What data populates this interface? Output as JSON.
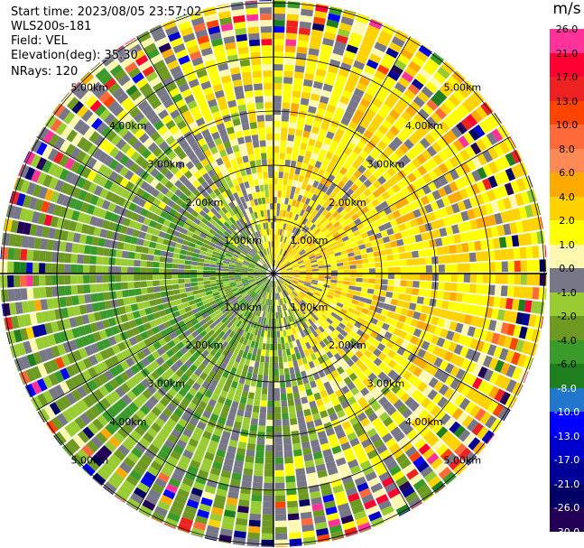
{
  "header": {
    "start_time": "Start time: 2023/08/05 23:57:02",
    "instrument": "WLS200s-181",
    "field": "Field: VEL",
    "elevation": "Elevation(deg): 35.30",
    "nrays": "NRays: 120"
  },
  "ring_labels": [
    "1.00km",
    "2.00km",
    "3.00km",
    "4.00km",
    "5.00km"
  ],
  "colorbar": {
    "unit": "m/s",
    "ticks": [
      "26.0",
      "21.0",
      "17.0",
      "13.0",
      "10.0",
      "8.0",
      "6.0",
      "4.0",
      "2.0",
      "1.0",
      "0.0",
      "-1.0",
      "-2.0",
      "-4.0",
      "-6.0",
      "-8.0",
      "-10.0",
      "-13.0",
      "-17.0",
      "-21.0",
      "-26.0",
      "-30.0"
    ],
    "colors": [
      "#ff3399",
      "#ff0033",
      "#ee2222",
      "#ff4400",
      "#ff6a3a",
      "#ff8a55",
      "#ffaa00",
      "#ffd200",
      "#ffff00",
      "#fff8b0",
      "#777788",
      "#99cc33",
      "#6e9922",
      "#3a9a2a",
      "#1f7f1f",
      "#2277cc",
      "#0000ff",
      "#0000cc",
      "#000099",
      "#000066",
      "#220055"
    ]
  }
}
